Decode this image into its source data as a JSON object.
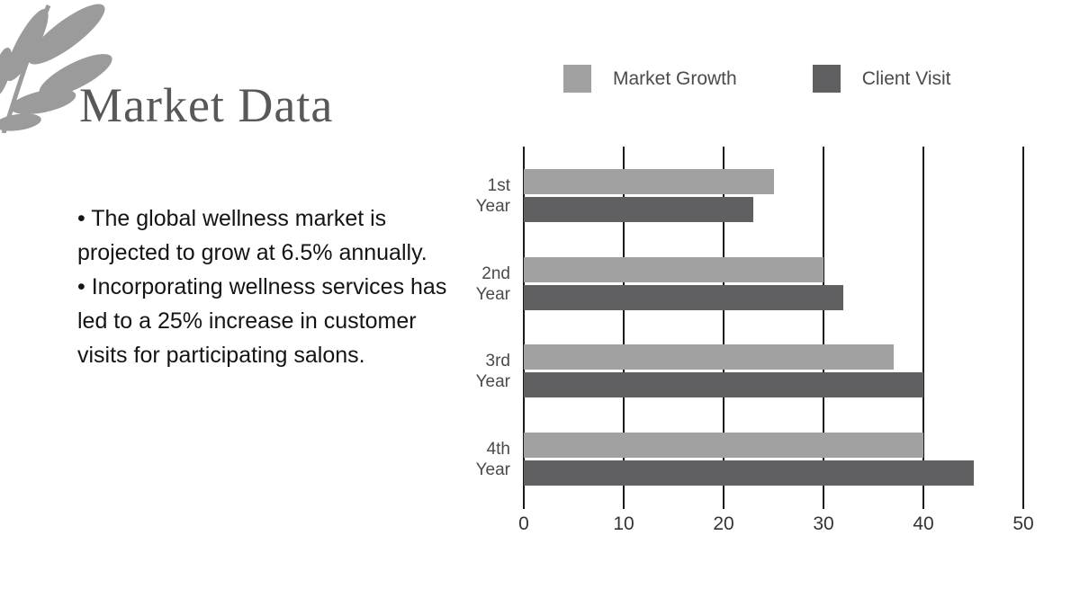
{
  "slide": {
    "title": "Market Data",
    "bullets": [
      "• The global wellness market is projected to grow at 6.5% annually.",
      "• Incorporating wellness services has led to a 25% increase in customer visits for participating salons."
    ]
  },
  "colors": {
    "background": "#ffffff",
    "title_text": "#58585b",
    "body_text": "#141414",
    "leaf": "#9b9b9b",
    "gridline": "#1a1a1a",
    "category_label": "#4a4a4d",
    "axis_label": "#333333"
  },
  "chart_data": {
    "type": "bar",
    "orientation": "horizontal",
    "categories": [
      "1st Year",
      "2nd Year",
      "3rd Year",
      "4th Year"
    ],
    "series": [
      {
        "name": "Market Growth",
        "color": "#a1a1a1",
        "values": [
          25,
          30,
          37,
          40
        ]
      },
      {
        "name": "Client Visit",
        "color": "#606063",
        "values": [
          23,
          32,
          40,
          45
        ]
      }
    ],
    "title": "",
    "xlabel": "",
    "ylabel": "",
    "xlim": [
      0,
      50
    ],
    "x_ticks": [
      0,
      10,
      20,
      30,
      40,
      50
    ],
    "grid": "vertical",
    "legend_position": "top"
  }
}
